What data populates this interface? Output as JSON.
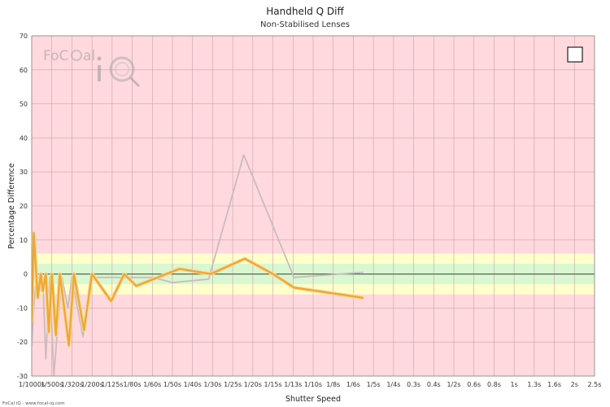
{
  "chart_data": {
    "type": "line",
    "title": "Handheld Q Diff",
    "subtitle": "Non-Stabilised Lenses",
    "xlabel": "Shutter Speed",
    "ylabel": "Percentage Difference",
    "ylim": [
      -30,
      70
    ],
    "yticks": [
      "-30",
      "-20",
      "-10",
      "0",
      "10",
      "20",
      "30",
      "40",
      "50",
      "60",
      "70"
    ],
    "categories": [
      "1/1000s",
      "1/500s",
      "1/320s",
      "1/200s",
      "1/125s",
      "1/80s",
      "1/60s",
      "1/50s",
      "1/40s",
      "1/30s",
      "1/25s",
      "1/20s",
      "1/15s",
      "1/13s",
      "1/10s",
      "1/8s",
      "1/6s",
      "1/5s",
      "1/4s",
      "0.3s",
      "0.4s",
      "1/2s",
      "0.6s",
      "0.8s",
      "1s",
      "1.3s",
      "1.6s",
      "2s",
      "2.5s"
    ],
    "bands": [
      {
        "from": -6,
        "to": 6,
        "color": "#ffffcc"
      },
      {
        "from": -3,
        "to": 3,
        "color": "#d9f7d0"
      }
    ],
    "background_color": "#ffd9dd",
    "series": [
      {
        "color": "#c8bcbf",
        "points": [
          [
            0.0,
            -21
          ],
          [
            0.1,
            -10
          ],
          [
            0.25,
            1
          ],
          [
            0.4,
            -5
          ],
          [
            0.55,
            -1
          ],
          [
            0.7,
            -25
          ],
          [
            0.9,
            -1
          ],
          [
            1.1,
            -30
          ],
          [
            1.3,
            -15
          ],
          [
            1.5,
            -1
          ],
          [
            1.8,
            -10
          ],
          [
            2.0,
            -1
          ],
          [
            2.55,
            -18.5
          ],
          [
            3.0,
            -1
          ],
          [
            4.0,
            -1
          ],
          [
            6.0,
            -1
          ],
          [
            7.0,
            -2.5
          ],
          [
            8.8,
            -1.5
          ],
          [
            10.55,
            35
          ],
          [
            13.05,
            -1
          ],
          [
            16.5,
            0.5
          ]
        ]
      },
      {
        "color": "#f0a830",
        "points": [
          [
            0.0,
            -14
          ],
          [
            0.1,
            12
          ],
          [
            0.3,
            -7
          ],
          [
            0.45,
            0
          ],
          [
            0.55,
            -5
          ],
          [
            0.7,
            0
          ],
          [
            0.85,
            -17
          ],
          [
            1.0,
            0
          ],
          [
            1.2,
            -18
          ],
          [
            1.4,
            0
          ],
          [
            1.85,
            -21
          ],
          [
            2.1,
            0
          ],
          [
            2.6,
            -16.5
          ],
          [
            3.0,
            0
          ],
          [
            3.95,
            -8
          ],
          [
            4.6,
            0
          ],
          [
            5.2,
            -3.5
          ],
          [
            7.35,
            1.5
          ],
          [
            8.9,
            0
          ],
          [
            10.6,
            4.5
          ],
          [
            12.0,
            0
          ],
          [
            13.05,
            -4
          ],
          [
            16.5,
            -7
          ]
        ]
      }
    ],
    "credit": "FoCal iQ - www.focal-iq.com",
    "logo_text": "FoCal iQ"
  }
}
